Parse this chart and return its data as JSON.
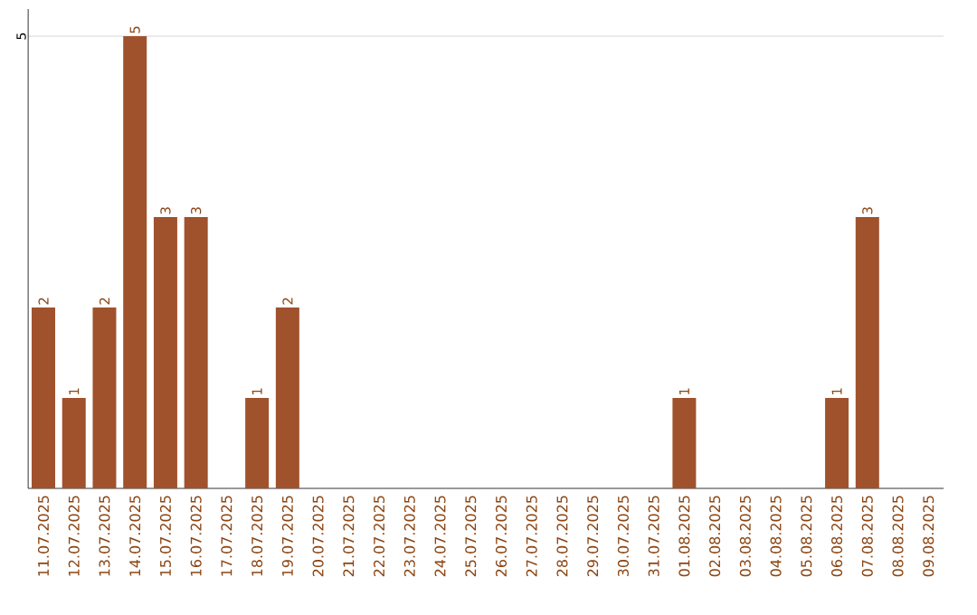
{
  "chart_data": {
    "type": "bar",
    "color": "#a0522d",
    "categories": [
      "11.07.2025",
      "12.07.2025",
      "13.07.2025",
      "14.07.2025",
      "15.07.2025",
      "16.07.2025",
      "17.07.2025",
      "18.07.2025",
      "19.07.2025",
      "20.07.2025",
      "21.07.2025",
      "22.07.2025",
      "23.07.2025",
      "24.07.2025",
      "25.07.2025",
      "26.07.2025",
      "27.07.2025",
      "28.07.2025",
      "29.07.2025",
      "30.07.2025",
      "31.07.2025",
      "01.08.2025",
      "02.08.2025",
      "03.08.2025",
      "04.08.2025",
      "05.08.2025",
      "06.08.2025",
      "07.08.2025",
      "08.08.2025",
      "09.08.2025"
    ],
    "values": [
      2,
      1,
      2,
      5,
      3,
      3,
      0,
      1,
      2,
      0,
      0,
      0,
      0,
      0,
      0,
      0,
      0,
      0,
      0,
      0,
      0,
      1,
      0,
      0,
      0,
      0,
      1,
      3,
      0,
      0
    ],
    "value_labels": [
      "2",
      "1",
      "2",
      "5",
      "3",
      "3",
      null,
      "1",
      "2",
      null,
      null,
      null,
      null,
      null,
      null,
      null,
      null,
      null,
      null,
      null,
      null,
      "1",
      null,
      null,
      null,
      null,
      "1",
      "3",
      null,
      null
    ],
    "ylim": [
      0,
      5.3
    ],
    "yticks": [
      5
    ],
    "grid": "y"
  }
}
